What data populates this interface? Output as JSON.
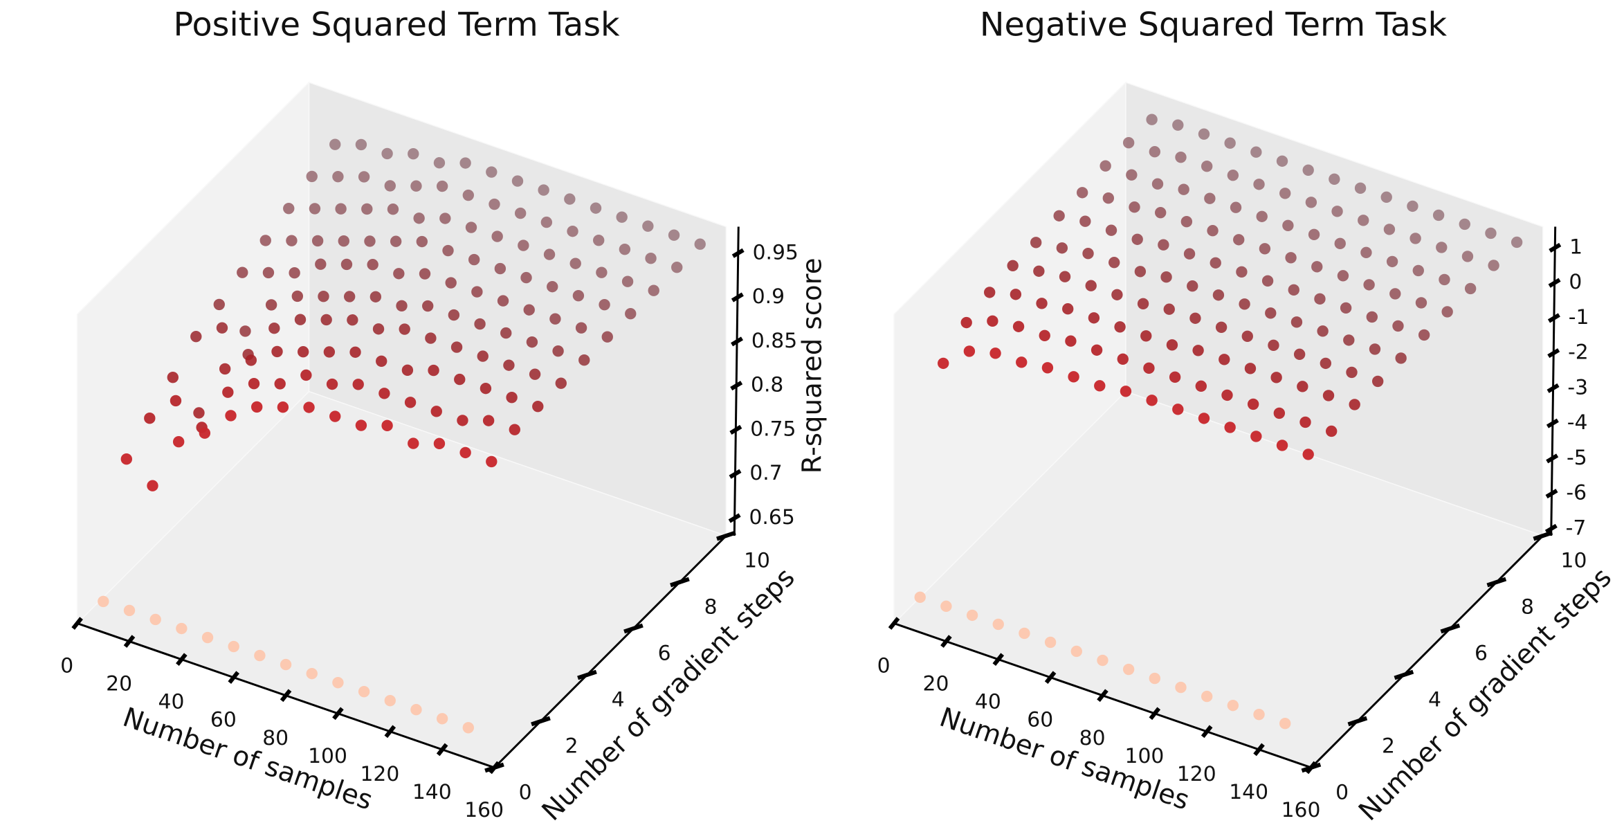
{
  "chart_data": [
    {
      "type": "scatter3d",
      "title": "Positive Squared Term Task",
      "xlabel": "Number of samples",
      "ylabel": "Number of gradient steps",
      "zlabel": "R-squared score",
      "xlim": [
        0,
        160
      ],
      "xticks": [
        0,
        20,
        40,
        60,
        80,
        100,
        120,
        140,
        160
      ],
      "ylim": [
        0,
        10
      ],
      "yticks": [
        0,
        2,
        4,
        6,
        8,
        10
      ],
      "zlim": [
        0.63,
        0.98
      ],
      "zticks": [
        0.65,
        0.7,
        0.75,
        0.8,
        0.85,
        0.9,
        0.95
      ],
      "x": [
        10,
        20,
        30,
        40,
        50,
        60,
        70,
        80,
        90,
        100,
        110,
        120,
        130,
        140,
        150
      ],
      "series": [
        {
          "y": 0,
          "color": "#fcc9b1",
          "values": [
            0.665,
            0.665,
            0.665,
            0.665,
            0.665,
            0.665,
            0.665,
            0.665,
            0.665,
            0.665,
            0.665,
            0.665,
            0.665,
            0.665,
            0.665
          ]
        },
        {
          "y": 1,
          "color": "#c8282d",
          "values": [
            0.8,
            0.78,
            0.84,
            0.86,
            0.89,
            0.91,
            0.92,
            0.93,
            0.93,
            0.93,
            0.94,
            0.93,
            0.94,
            0.94,
            0.94
          ]
        },
        {
          "y": 2,
          "color": "#b52227",
          "values": [
            0.82,
            0.85,
            0.83,
            0.88,
            0.9,
            0.91,
            0.93,
            0.93,
            0.94,
            0.94,
            0.94,
            0.94,
            0.94,
            0.95,
            0.95
          ]
        },
        {
          "y": 3,
          "color": "#a51f24",
          "values": [
            0.84,
            0.81,
            0.87,
            0.89,
            0.91,
            0.92,
            0.93,
            0.94,
            0.94,
            0.94,
            0.95,
            0.95,
            0.95,
            0.95,
            0.95
          ]
        },
        {
          "y": 4,
          "color": "#982328",
          "values": [
            0.86,
            0.88,
            0.86,
            0.9,
            0.92,
            0.93,
            0.94,
            0.94,
            0.95,
            0.95,
            0.95,
            0.95,
            0.95,
            0.95,
            0.95
          ]
        },
        {
          "y": 5,
          "color": "#8f282e",
          "values": [
            0.87,
            0.85,
            0.89,
            0.91,
            0.92,
            0.93,
            0.94,
            0.94,
            0.95,
            0.95,
            0.95,
            0.95,
            0.95,
            0.95,
            0.95
          ]
        },
        {
          "y": 6,
          "color": "#892d35",
          "values": [
            0.88,
            0.89,
            0.9,
            0.92,
            0.93,
            0.94,
            0.94,
            0.95,
            0.95,
            0.95,
            0.95,
            0.95,
            0.95,
            0.95,
            0.95
          ]
        },
        {
          "y": 7,
          "color": "#84333b",
          "values": [
            0.89,
            0.9,
            0.91,
            0.92,
            0.93,
            0.94,
            0.95,
            0.95,
            0.95,
            0.95,
            0.95,
            0.95,
            0.95,
            0.95,
            0.95
          ]
        },
        {
          "y": 8,
          "color": "#7f3942",
          "values": [
            0.9,
            0.91,
            0.92,
            0.93,
            0.94,
            0.94,
            0.95,
            0.95,
            0.95,
            0.95,
            0.95,
            0.95,
            0.95,
            0.95,
            0.95
          ]
        },
        {
          "y": 9,
          "color": "#7b3f48",
          "values": [
            0.91,
            0.92,
            0.93,
            0.93,
            0.94,
            0.95,
            0.95,
            0.95,
            0.95,
            0.95,
            0.95,
            0.95,
            0.95,
            0.95,
            0.95
          ]
        },
        {
          "y": 10,
          "color": "#77454e",
          "values": [
            0.92,
            0.93,
            0.93,
            0.94,
            0.94,
            0.95,
            0.95,
            0.95,
            0.95,
            0.95,
            0.95,
            0.95,
            0.95,
            0.95,
            0.95
          ]
        }
      ]
    },
    {
      "type": "scatter3d",
      "title": "Negative Squared Term Task",
      "xlabel": "Number of samples",
      "ylabel": "Number of gradient steps",
      "xlim": [
        0,
        160
      ],
      "xticks": [
        0,
        20,
        40,
        60,
        80,
        100,
        120,
        140,
        160
      ],
      "ylim": [
        0,
        10
      ],
      "yticks": [
        0,
        2,
        4,
        6,
        8,
        10
      ],
      "zlim": [
        -7.2,
        1.6
      ],
      "zticks": [
        -7,
        -6,
        -5,
        -4,
        -3,
        -2,
        -1,
        0,
        1
      ],
      "x": [
        10,
        20,
        30,
        40,
        50,
        60,
        70,
        80,
        90,
        100,
        110,
        120,
        130,
        140,
        150
      ],
      "series": [
        {
          "y": 0,
          "color": "#fcc9b1",
          "values": [
            -6.2,
            -6.2,
            -6.2,
            -6.2,
            -6.2,
            -6.2,
            -6.2,
            -6.2,
            -6.2,
            -6.2,
            -6.2,
            -6.2,
            -6.2,
            -6.2,
            -6.2
          ]
        },
        {
          "y": 1,
          "color": "#c8282d",
          "values": [
            -0.2,
            0.4,
            0.6,
            0.6,
            0.7,
            0.7,
            0.7,
            0.8,
            0.8,
            0.8,
            0.8,
            0.8,
            0.8,
            0.8,
            0.8
          ]
        },
        {
          "y": 2,
          "color": "#b52227",
          "values": [
            0.3,
            0.6,
            0.7,
            0.7,
            0.8,
            0.8,
            0.8,
            0.8,
            0.8,
            0.8,
            0.8,
            0.8,
            0.8,
            0.8,
            0.8
          ]
        },
        {
          "y": 3,
          "color": "#a51f24",
          "values": [
            0.5,
            0.7,
            0.7,
            0.8,
            0.8,
            0.8,
            0.8,
            0.8,
            0.9,
            0.9,
            0.9,
            0.9,
            0.9,
            0.9,
            0.9
          ]
        },
        {
          "y": 4,
          "color": "#982328",
          "values": [
            0.6,
            0.7,
            0.8,
            0.8,
            0.8,
            0.8,
            0.9,
            0.9,
            0.9,
            0.9,
            0.9,
            0.9,
            0.9,
            0.9,
            0.9
          ]
        },
        {
          "y": 5,
          "color": "#8f282e",
          "values": [
            0.6,
            0.7,
            0.8,
            0.8,
            0.8,
            0.9,
            0.9,
            0.9,
            0.9,
            0.9,
            0.9,
            0.9,
            0.9,
            0.9,
            0.9
          ]
        },
        {
          "y": 6,
          "color": "#892d35",
          "values": [
            0.7,
            0.8,
            0.8,
            0.8,
            0.9,
            0.9,
            0.9,
            0.9,
            0.9,
            0.9,
            0.9,
            0.9,
            0.9,
            0.9,
            0.9
          ]
        },
        {
          "y": 7,
          "color": "#84333b",
          "values": [
            0.7,
            0.8,
            0.8,
            0.9,
            0.9,
            0.9,
            0.9,
            0.9,
            0.9,
            0.9,
            0.9,
            0.9,
            0.9,
            0.9,
            0.9
          ]
        },
        {
          "y": 8,
          "color": "#7f3942",
          "values": [
            0.8,
            0.8,
            0.8,
            0.9,
            0.9,
            0.9,
            0.9,
            0.9,
            0.9,
            0.9,
            0.9,
            0.9,
            0.9,
            0.9,
            0.9
          ]
        },
        {
          "y": 9,
          "color": "#7b3f48",
          "values": [
            0.8,
            0.8,
            0.9,
            0.9,
            0.9,
            0.9,
            0.9,
            0.9,
            0.9,
            0.9,
            0.9,
            0.9,
            0.9,
            0.9,
            0.9
          ]
        },
        {
          "y": 10,
          "color": "#77454e",
          "values": [
            0.8,
            0.9,
            0.9,
            0.9,
            0.9,
            0.9,
            0.9,
            0.9,
            0.9,
            0.9,
            0.9,
            0.9,
            0.9,
            0.9,
            0.9
          ]
        }
      ]
    }
  ]
}
